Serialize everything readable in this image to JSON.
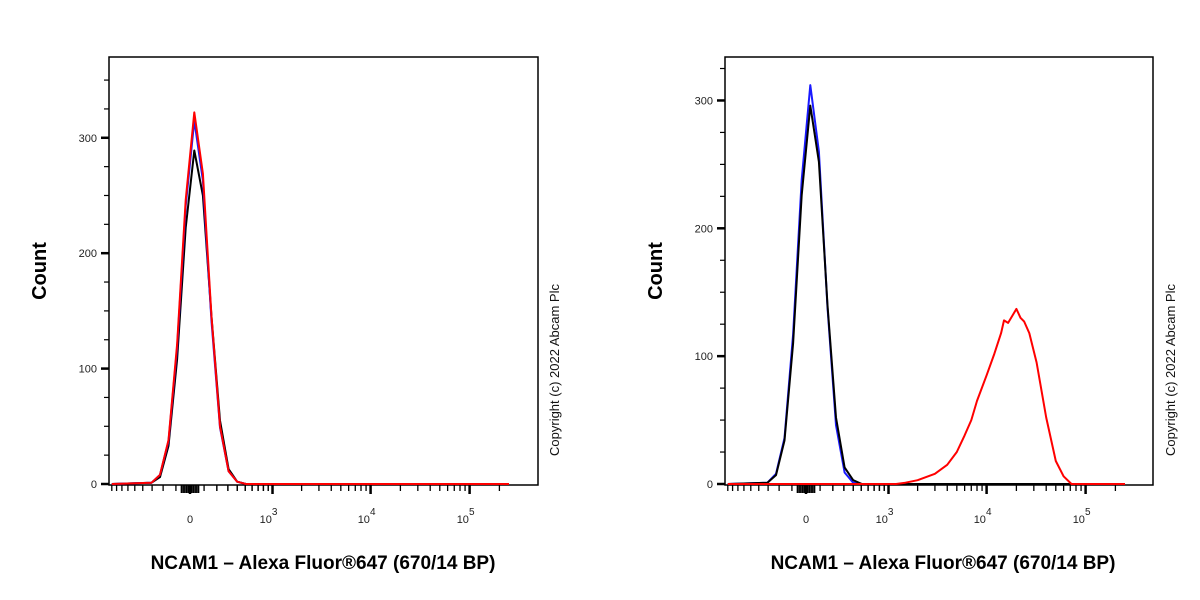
{
  "chart_data": [
    {
      "type": "line",
      "title": "",
      "xlabel": "NCAM1 – Alexa Fluor®647 (670/14 BP)",
      "ylabel": "Count",
      "x_scale": "biexponential",
      "xlim": [
        -900,
        250000
      ],
      "ylim": [
        0,
        370
      ],
      "x_ticks": [
        {
          "value": 0,
          "base": "0",
          "exp": ""
        },
        {
          "value": 1000,
          "base": "10",
          "exp": "3"
        },
        {
          "value": 10000,
          "base": "10",
          "exp": "4"
        },
        {
          "value": 100000,
          "base": "10",
          "exp": "5"
        }
      ],
      "y_ticks": [
        0,
        100,
        200,
        300
      ],
      "grid": false,
      "copyright": "Copyright (c) 2022 Abcam Plc",
      "series": [
        {
          "color": "#000000",
          "points": [
            [
              -900,
              0
            ],
            [
              -307,
              1
            ],
            [
              -227,
              6
            ],
            [
              -156,
              33
            ],
            [
              -91,
              108
            ],
            [
              -30,
              222
            ],
            [
              30,
              289
            ],
            [
              91,
              250
            ],
            [
              156,
              145
            ],
            [
              227,
              55
            ],
            [
              307,
              13
            ],
            [
              400,
              2
            ],
            [
              510,
              0
            ],
            [
              250000,
              0
            ]
          ]
        },
        {
          "color": "#1a1aff",
          "points": [
            [
              -900,
              0
            ],
            [
              -307,
              1
            ],
            [
              -227,
              8
            ],
            [
              -156,
              37
            ],
            [
              -91,
              118
            ],
            [
              -30,
              241
            ],
            [
              30,
              315
            ],
            [
              91,
              263
            ],
            [
              156,
              141
            ],
            [
              227,
              49
            ],
            [
              307,
              11
            ],
            [
              400,
              2
            ],
            [
              510,
              0
            ],
            [
              250000,
              0
            ]
          ]
        },
        {
          "color": "#ff0000",
          "points": [
            [
              -900,
              0
            ],
            [
              -307,
              1
            ],
            [
              -227,
              8
            ],
            [
              -156,
              38
            ],
            [
              -91,
              121
            ],
            [
              -30,
              246
            ],
            [
              30,
              322
            ],
            [
              91,
              269
            ],
            [
              156,
              145
            ],
            [
              227,
              50
            ],
            [
              307,
              11
            ],
            [
              400,
              2
            ],
            [
              510,
              0
            ],
            [
              250000,
              0
            ]
          ]
        }
      ]
    },
    {
      "type": "line",
      "title": "",
      "xlabel": "NCAM1 – Alexa Fluor®647 (670/14 BP)",
      "ylabel": "Count",
      "x_scale": "biexponential",
      "xlim": [
        -900,
        250000
      ],
      "ylim": [
        0,
        334
      ],
      "x_ticks": [
        {
          "value": 0,
          "base": "0",
          "exp": ""
        },
        {
          "value": 1000,
          "base": "10",
          "exp": "3"
        },
        {
          "value": 10000,
          "base": "10",
          "exp": "4"
        },
        {
          "value": 100000,
          "base": "10",
          "exp": "5"
        }
      ],
      "y_ticks": [
        0,
        100,
        200,
        300
      ],
      "grid": false,
      "copyright": "Copyright (c) 2022 Abcam Plc",
      "series": [
        {
          "color": "#1a1aff",
          "points": [
            [
              -900,
              0
            ],
            [
              -307,
              1
            ],
            [
              -227,
              8
            ],
            [
              -156,
              36
            ],
            [
              -91,
              117
            ],
            [
              -30,
              238
            ],
            [
              30,
              312
            ],
            [
              91,
              260
            ],
            [
              156,
              138
            ],
            [
              227,
              46
            ],
            [
              307,
              9
            ],
            [
              400,
              1
            ],
            [
              510,
              0
            ],
            [
              250000,
              0
            ]
          ]
        },
        {
          "color": "#000000",
          "points": [
            [
              -900,
              0
            ],
            [
              -307,
              1
            ],
            [
              -227,
              7
            ],
            [
              -156,
              34
            ],
            [
              -91,
              110
            ],
            [
              -30,
              226
            ],
            [
              30,
              296
            ],
            [
              91,
              252
            ],
            [
              156,
              140
            ],
            [
              227,
              52
            ],
            [
              307,
              13
            ],
            [
              400,
              3
            ],
            [
              510,
              0
            ],
            [
              250000,
              0
            ]
          ]
        },
        {
          "color": "#ff0000",
          "points": [
            [
              -900,
              0
            ],
            [
              1200,
              0
            ],
            [
              1500,
              1
            ],
            [
              2000,
              3
            ],
            [
              3000,
              8
            ],
            [
              4000,
              15
            ],
            [
              5000,
              25
            ],
            [
              6000,
              38
            ],
            [
              7000,
              50
            ],
            [
              8000,
              65
            ],
            [
              10000,
              85
            ],
            [
              12000,
              102
            ],
            [
              14000,
              118
            ],
            [
              15000,
              128
            ],
            [
              16500,
              126
            ],
            [
              18000,
              131
            ],
            [
              20000,
              137
            ],
            [
              22000,
              130
            ],
            [
              24000,
              127
            ],
            [
              27000,
              118
            ],
            [
              32000,
              95
            ],
            [
              40000,
              52
            ],
            [
              50000,
              18
            ],
            [
              60000,
              6
            ],
            [
              72000,
              0
            ],
            [
              250000,
              0
            ]
          ]
        }
      ]
    }
  ]
}
